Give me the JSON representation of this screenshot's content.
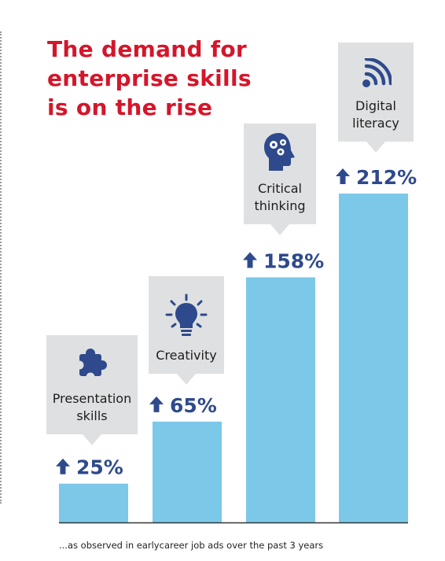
{
  "title_lines": [
    "The demand for",
    "enterprise skills",
    "is on the rise"
  ],
  "footnote": "...as observed in earlycareer job ads over the past 3 years",
  "colors": {
    "title": "#d4162b",
    "bar": "#7cc8e8",
    "value": "#2e4a8c",
    "callout_bg": "#dfe0e2",
    "icon": "#2e4a8c"
  },
  "callouts": [
    {
      "lines": [
        "Presentation",
        "skills"
      ],
      "icon": "puzzle-icon"
    },
    {
      "lines": [
        "Creativity"
      ],
      "icon": "lightbulb-icon"
    },
    {
      "lines": [
        "Critical",
        "thinking"
      ],
      "icon": "brain-gears-icon"
    },
    {
      "lines": [
        "Digital",
        "literacy"
      ],
      "icon": "signal-icon"
    }
  ],
  "chart_data": {
    "type": "bar",
    "categories": [
      "Presentation skills",
      "Creativity",
      "Critical thinking",
      "Digital literacy"
    ],
    "values": [
      25,
      65,
      158,
      212
    ],
    "value_labels": [
      "25%",
      "65%",
      "158%",
      "212%"
    ],
    "title": "The demand for enterprise skills is on the rise",
    "xlabel": "",
    "ylabel": "",
    "ylim": [
      0,
      220
    ],
    "grid": false,
    "legend": "none"
  }
}
